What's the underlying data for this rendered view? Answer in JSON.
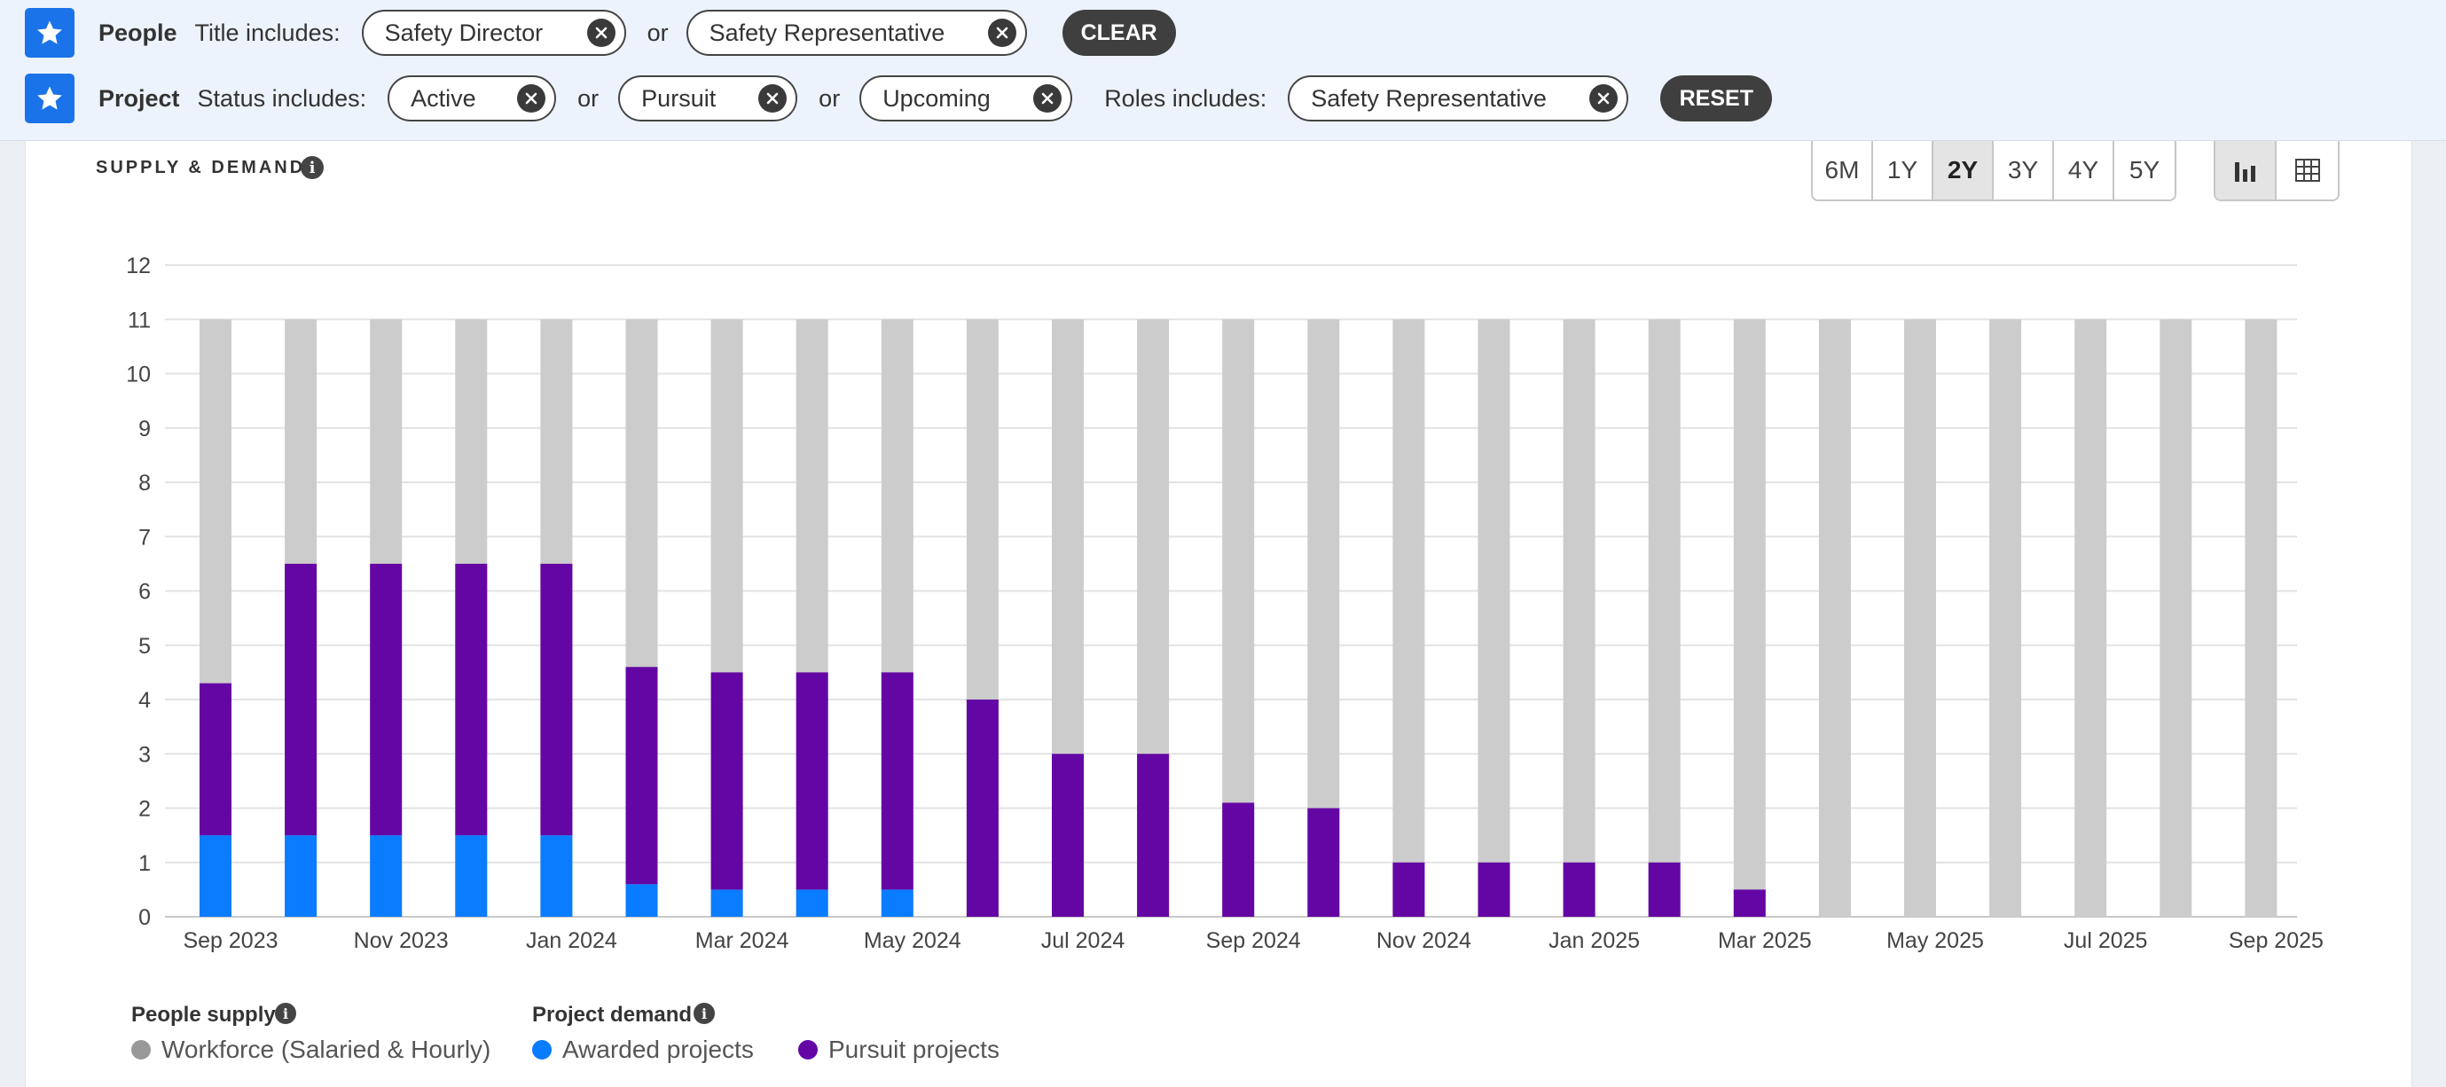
{
  "filters": {
    "people": {
      "label": "People",
      "field_label": "Title includes:",
      "chips": [
        "Safety Director",
        "Safety Representative"
      ],
      "or_word": "or",
      "button": "CLEAR"
    },
    "project": {
      "label": "Project",
      "status_label": "Status includes:",
      "status_chips": [
        "Active",
        "Pursuit",
        "Upcoming"
      ],
      "or_word": "or",
      "roles_label": "Roles includes:",
      "roles_chips": [
        "Safety Representative"
      ],
      "button": "RESET"
    }
  },
  "section_title": "SUPPLY & DEMAND",
  "info_glyph": "i",
  "time_ranges": [
    {
      "label": "6M",
      "selected": false
    },
    {
      "label": "1Y",
      "selected": false
    },
    {
      "label": "2Y",
      "selected": true
    },
    {
      "label": "3Y",
      "selected": false
    },
    {
      "label": "4Y",
      "selected": false
    },
    {
      "label": "5Y",
      "selected": false
    }
  ],
  "view_modes": [
    {
      "icon": "bar-chart-icon",
      "selected": true
    },
    {
      "icon": "table-icon",
      "selected": false
    }
  ],
  "colors": {
    "workforce": "#cccccc",
    "awarded": "#0a7cff",
    "pursuit": "#6406a4",
    "accent": "#1a73e8"
  },
  "chart_data": {
    "type": "bar",
    "stacked": true,
    "grid": true,
    "ylim": [
      0,
      12
    ],
    "yticks": [
      0,
      1,
      2,
      3,
      4,
      5,
      6,
      7,
      8,
      9,
      10,
      11,
      12
    ],
    "months": [
      "Sep 2023",
      "Oct 2023",
      "Nov 2023",
      "Dec 2023",
      "Jan 2024",
      "Feb 2024",
      "Mar 2024",
      "Apr 2024",
      "May 2024",
      "Jun 2024",
      "Jul 2024",
      "Aug 2024",
      "Sep 2024",
      "Oct 2024",
      "Nov 2024",
      "Dec 2024",
      "Jan 2025",
      "Feb 2025",
      "Mar 2025",
      "Apr 2025",
      "May 2025",
      "Jun 2025",
      "Jul 2025",
      "Aug 2025",
      "Sep 2025"
    ],
    "x_tick_labels": [
      "Sep 2023",
      "Nov 2023",
      "Jan 2024",
      "Mar 2024",
      "May 2024",
      "Jul 2024",
      "Sep 2024",
      "Nov 2024",
      "Jan 2025",
      "Mar 2025",
      "May 2025",
      "Jul 2025",
      "Sep 2025"
    ],
    "series": [
      {
        "name": "Workforce (Salaried & Hourly)",
        "group": "People supply",
        "values": [
          11,
          11,
          11,
          11,
          11,
          11,
          11,
          11,
          11,
          11,
          11,
          11,
          11,
          11,
          11,
          11,
          11,
          11,
          11,
          11,
          11,
          11,
          11,
          11,
          11
        ]
      },
      {
        "name": "Awarded projects",
        "group": "Project demand",
        "values": [
          1.5,
          1.5,
          1.5,
          1.5,
          1.5,
          0.6,
          0.5,
          0.5,
          0.5,
          0,
          0,
          0,
          0,
          0,
          0,
          0,
          0,
          0,
          0,
          0,
          0,
          0,
          0,
          0,
          0
        ]
      },
      {
        "name": "Pursuit projects",
        "group": "Project demand",
        "values": [
          2.8,
          5,
          5,
          5,
          5,
          4,
          4,
          4,
          4,
          4,
          3,
          3,
          2.1,
          2,
          1,
          1,
          1,
          1,
          0.5,
          0,
          0,
          0,
          0,
          0,
          0
        ]
      }
    ]
  },
  "legend": {
    "people_supply_title": "People supply",
    "project_demand_title": "Project demand",
    "workforce": "Workforce (Salaried & Hourly)",
    "awarded": "Awarded projects",
    "pursuit": "Pursuit projects"
  }
}
